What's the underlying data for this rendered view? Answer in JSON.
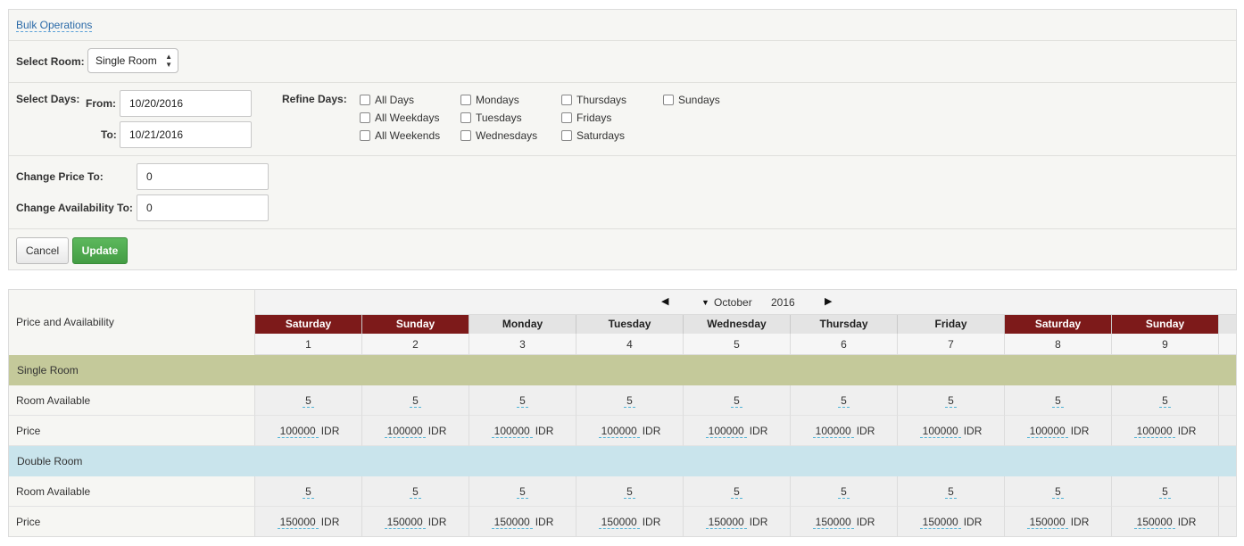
{
  "bulk": {
    "link_label": "Bulk Operations",
    "select_room_label": "Select Room:",
    "room_value": "Single Room",
    "select_days_label": "Select Days:",
    "from_label": "From:",
    "from_value": "10/20/2016",
    "to_label": "To:",
    "to_value": "10/21/2016",
    "refine_days_label": "Refine Days:",
    "refine_days": [
      [
        "All Days",
        "All Weekdays",
        "All Weekends"
      ],
      [
        "Mondays",
        "Tuesdays",
        "Wednesdays"
      ],
      [
        "Thursdays",
        "Fridays",
        "Saturdays"
      ],
      [
        "Sundays"
      ]
    ],
    "change_price_label": "Change Price To:",
    "change_price_value": "0",
    "change_avail_label": "Change Availability To:",
    "change_avail_value": "0",
    "cancel_label": "Cancel",
    "update_label": "Update"
  },
  "calendar": {
    "header_label": "Price and Availability",
    "month": "October",
    "year": "2016",
    "days": [
      {
        "name": "Saturday",
        "date": "1",
        "weekend": true
      },
      {
        "name": "Sunday",
        "date": "2",
        "weekend": true
      },
      {
        "name": "Monday",
        "date": "3",
        "weekend": false
      },
      {
        "name": "Tuesday",
        "date": "4",
        "weekend": false
      },
      {
        "name": "Wednesday",
        "date": "5",
        "weekend": false
      },
      {
        "name": "Thursday",
        "date": "6",
        "weekend": false
      },
      {
        "name": "Friday",
        "date": "7",
        "weekend": false
      },
      {
        "name": "Saturday",
        "date": "8",
        "weekend": true
      },
      {
        "name": "Sunday",
        "date": "9",
        "weekend": true
      }
    ],
    "rooms": [
      {
        "name": "Single Room",
        "band": "single",
        "available_label": "Room Available",
        "price_label": "Price",
        "available": [
          "5",
          "5",
          "5",
          "5",
          "5",
          "5",
          "5",
          "5",
          "5"
        ],
        "prices": [
          "100000",
          "100000",
          "100000",
          "100000",
          "100000",
          "100000",
          "100000",
          "100000",
          "100000"
        ]
      },
      {
        "name": "Double Room",
        "band": "double",
        "available_label": "Room Available",
        "price_label": "Price",
        "available": [
          "5",
          "5",
          "5",
          "5",
          "5",
          "5",
          "5",
          "5",
          "5"
        ],
        "prices": [
          "150000",
          "150000",
          "150000",
          "150000",
          "150000",
          "150000",
          "150000",
          "150000",
          "150000"
        ]
      }
    ],
    "currency": "IDR"
  },
  "colors": {
    "weekend_header": "#7d1a1a",
    "single_band": "#c4c99a",
    "double_band": "#c9e4ec",
    "update_button": "#5cb85c"
  }
}
